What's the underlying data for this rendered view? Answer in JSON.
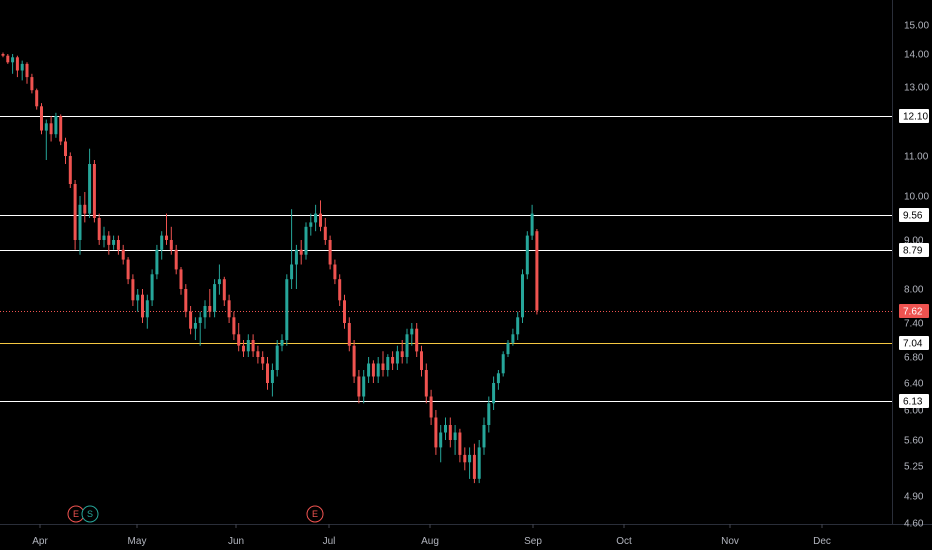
{
  "chart_data": {
    "type": "candlestick",
    "y_ticks": [
      "15.00",
      "14.00",
      "13.00",
      "11.00",
      "10.00",
      "9.00",
      "8.00",
      "7.40",
      "6.80",
      "6.40",
      "6.00",
      "5.60",
      "5.25",
      "4.90",
      "4.60"
    ],
    "x_labels": [
      "Apr",
      "May",
      "Jun",
      "Jul",
      "Aug",
      "Sep",
      "Oct",
      "Nov",
      "Dec"
    ],
    "levels": [
      {
        "value": 12.1,
        "label": "12.10",
        "color": "#ffffff",
        "style": "solid"
      },
      {
        "value": 9.56,
        "label": "9.56",
        "color": "#ffffff",
        "style": "solid"
      },
      {
        "value": 8.79,
        "label": "8.79",
        "color": "#ffffff",
        "style": "solid"
      },
      {
        "value": 7.62,
        "label": "7.62",
        "color": "#ef5350",
        "style": "dotted",
        "current": true
      },
      {
        "value": 7.04,
        "label": "7.04",
        "color": "#f5c842",
        "style": "solid"
      },
      {
        "value": 6.13,
        "label": "6.13",
        "color": "#ffffff",
        "style": "solid"
      }
    ],
    "events": [
      {
        "label": "E",
        "color": "#ef5350",
        "near": "Apr"
      },
      {
        "label": "S",
        "color": "#26a69a",
        "near": "Apr"
      },
      {
        "label": "E",
        "color": "#ef5350",
        "near": "Jul"
      }
    ],
    "up_color": "#26a69a",
    "down_color": "#ef5350",
    "candles": [
      [
        14.0,
        14.05,
        13.9,
        13.95
      ],
      [
        13.95,
        14.0,
        13.7,
        13.75
      ],
      [
        13.75,
        14.0,
        13.4,
        13.9
      ],
      [
        13.9,
        13.95,
        13.3,
        13.5
      ],
      [
        13.5,
        13.8,
        13.2,
        13.7
      ],
      [
        13.7,
        13.75,
        13.1,
        13.3
      ],
      [
        13.3,
        13.4,
        12.8,
        12.9
      ],
      [
        12.9,
        12.95,
        12.3,
        12.4
      ],
      [
        12.4,
        12.5,
        11.6,
        11.7
      ],
      [
        11.7,
        12.0,
        10.9,
        11.9
      ],
      [
        11.9,
        12.1,
        11.4,
        11.6
      ],
      [
        11.6,
        12.2,
        11.5,
        12.1
      ],
      [
        12.1,
        12.15,
        11.3,
        11.4
      ],
      [
        11.4,
        11.5,
        10.8,
        11.0
      ],
      [
        11.0,
        11.1,
        10.2,
        10.3
      ],
      [
        10.3,
        10.4,
        8.8,
        9.0
      ],
      [
        9.0,
        10.0,
        8.7,
        9.8
      ],
      [
        9.8,
        10.1,
        9.4,
        9.6
      ],
      [
        9.6,
        11.2,
        9.5,
        10.8
      ],
      [
        10.8,
        10.9,
        9.4,
        9.5
      ],
      [
        9.5,
        9.6,
        8.9,
        9.0
      ],
      [
        9.0,
        9.3,
        8.85,
        9.1
      ],
      [
        9.1,
        9.2,
        8.7,
        8.9
      ],
      [
        8.9,
        9.1,
        8.8,
        9.0
      ],
      [
        9.0,
        9.1,
        8.7,
        8.8
      ],
      [
        8.8,
        8.9,
        8.5,
        8.6
      ],
      [
        8.6,
        8.65,
        8.1,
        8.2
      ],
      [
        8.2,
        8.3,
        7.7,
        7.8
      ],
      [
        7.8,
        8.0,
        7.6,
        7.9
      ],
      [
        7.9,
        8.0,
        7.4,
        7.5
      ],
      [
        7.5,
        7.9,
        7.3,
        7.8
      ],
      [
        7.8,
        8.4,
        7.7,
        8.3
      ],
      [
        8.3,
        8.9,
        8.2,
        8.8
      ],
      [
        8.8,
        9.2,
        8.6,
        9.1
      ],
      [
        9.1,
        9.6,
        8.9,
        9.0
      ],
      [
        9.0,
        9.3,
        8.7,
        8.8
      ],
      [
        8.8,
        8.9,
        8.3,
        8.4
      ],
      [
        8.4,
        8.45,
        7.9,
        8.0
      ],
      [
        8.0,
        8.1,
        7.5,
        7.6
      ],
      [
        7.6,
        7.7,
        7.2,
        7.3
      ],
      [
        7.3,
        7.5,
        7.1,
        7.4
      ],
      [
        7.4,
        7.6,
        7.0,
        7.5
      ],
      [
        7.5,
        7.8,
        7.3,
        7.7
      ],
      [
        7.7,
        8.0,
        7.5,
        7.6
      ],
      [
        7.6,
        8.2,
        7.5,
        8.1
      ],
      [
        8.1,
        8.5,
        7.9,
        8.2
      ],
      [
        8.2,
        8.25,
        7.7,
        7.8
      ],
      [
        7.8,
        7.9,
        7.4,
        7.5
      ],
      [
        7.5,
        7.6,
        7.1,
        7.2
      ],
      [
        7.2,
        7.4,
        6.9,
        7.0
      ],
      [
        7.0,
        7.1,
        6.8,
        6.9
      ],
      [
        6.9,
        7.2,
        6.8,
        7.1
      ],
      [
        7.1,
        7.2,
        6.8,
        6.9
      ],
      [
        6.9,
        7.0,
        6.7,
        6.8
      ],
      [
        6.8,
        6.9,
        6.6,
        6.7
      ],
      [
        6.7,
        6.8,
        6.3,
        6.4
      ],
      [
        6.4,
        6.7,
        6.2,
        6.6
      ],
      [
        6.6,
        7.1,
        6.5,
        7.0
      ],
      [
        7.0,
        7.2,
        6.9,
        7.1
      ],
      [
        7.1,
        8.3,
        7.0,
        8.2
      ],
      [
        8.2,
        9.7,
        8.0,
        8.5
      ],
      [
        8.5,
        8.9,
        8.0,
        8.8
      ],
      [
        8.8,
        9.0,
        8.5,
        8.7
      ],
      [
        8.7,
        9.4,
        8.6,
        9.3
      ],
      [
        9.3,
        9.6,
        9.1,
        9.4
      ],
      [
        9.4,
        9.8,
        9.2,
        9.6
      ],
      [
        9.6,
        9.9,
        9.2,
        9.3
      ],
      [
        9.3,
        9.5,
        8.9,
        9.0
      ],
      [
        9.0,
        9.1,
        8.4,
        8.5
      ],
      [
        8.5,
        8.6,
        8.1,
        8.2
      ],
      [
        8.2,
        8.3,
        7.7,
        7.8
      ],
      [
        7.8,
        7.9,
        7.3,
        7.4
      ],
      [
        7.4,
        7.5,
        6.9,
        7.0
      ],
      [
        7.0,
        7.1,
        6.4,
        6.5
      ],
      [
        6.5,
        6.6,
        6.1,
        6.2
      ],
      [
        6.2,
        6.6,
        6.1,
        6.5
      ],
      [
        6.5,
        6.8,
        6.4,
        6.7
      ],
      [
        6.7,
        6.75,
        6.4,
        6.5
      ],
      [
        6.5,
        6.8,
        6.4,
        6.7
      ],
      [
        6.7,
        6.9,
        6.5,
        6.6
      ],
      [
        6.6,
        6.85,
        6.5,
        6.8
      ],
      [
        6.8,
        6.9,
        6.6,
        6.7
      ],
      [
        6.7,
        7.0,
        6.6,
        6.9
      ],
      [
        6.9,
        7.1,
        6.7,
        6.8
      ],
      [
        6.8,
        7.3,
        6.7,
        7.2
      ],
      [
        7.2,
        7.4,
        7.0,
        7.3
      ],
      [
        7.3,
        7.4,
        6.8,
        6.9
      ],
      [
        6.9,
        7.0,
        6.5,
        6.6
      ],
      [
        6.6,
        6.7,
        6.1,
        6.2
      ],
      [
        6.2,
        6.3,
        5.8,
        5.9
      ],
      [
        5.9,
        6.0,
        5.4,
        5.5
      ],
      [
        5.5,
        5.8,
        5.3,
        5.7
      ],
      [
        5.7,
        5.9,
        5.6,
        5.8
      ],
      [
        5.8,
        5.9,
        5.5,
        5.6
      ],
      [
        5.6,
        5.8,
        5.4,
        5.7
      ],
      [
        5.7,
        5.75,
        5.3,
        5.4
      ],
      [
        5.4,
        5.5,
        5.2,
        5.3
      ],
      [
        5.3,
        5.5,
        5.1,
        5.4
      ],
      [
        5.4,
        5.55,
        5.05,
        5.1
      ],
      [
        5.1,
        5.6,
        5.05,
        5.5
      ],
      [
        5.5,
        5.9,
        5.4,
        5.8
      ],
      [
        5.8,
        6.2,
        5.7,
        6.1
      ],
      [
        6.1,
        6.5,
        6.0,
        6.4
      ],
      [
        6.4,
        6.6,
        6.3,
        6.55
      ],
      [
        6.55,
        6.9,
        6.5,
        6.85
      ],
      [
        6.85,
        7.1,
        6.8,
        7.05
      ],
      [
        7.05,
        7.3,
        7.0,
        7.2
      ],
      [
        7.2,
        7.6,
        7.1,
        7.5
      ],
      [
        7.5,
        8.4,
        7.4,
        8.3
      ],
      [
        8.3,
        9.2,
        8.2,
        9.1
      ],
      [
        9.1,
        9.8,
        9.0,
        9.6
      ],
      [
        9.2,
        9.25,
        7.55,
        7.62
      ]
    ]
  }
}
